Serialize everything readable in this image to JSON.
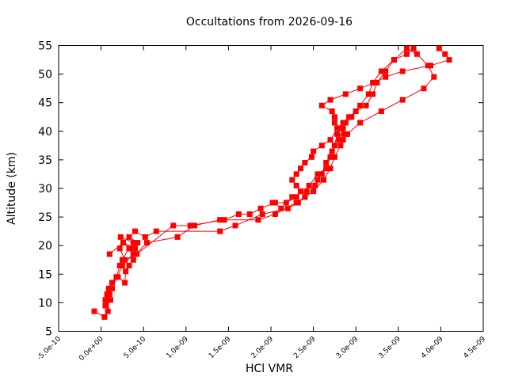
{
  "chart_data": {
    "type": "line",
    "title": "Occultations from 2026-09-16",
    "xlabel": "HCl VMR",
    "ylabel": "Altitude (km)",
    "xlim": [
      -5e-10,
      4.5e-09
    ],
    "ylim": [
      5,
      55
    ],
    "x_ticks": [
      {
        "value": -5e-10,
        "label": "-5.0e-10"
      },
      {
        "value": 0,
        "label": "0.0e+00"
      },
      {
        "value": 5e-10,
        "label": "5.0e-10"
      },
      {
        "value": 1e-09,
        "label": "1.0e-09"
      },
      {
        "value": 1.5e-09,
        "label": "1.5e-09"
      },
      {
        "value": 2e-09,
        "label": "2.0e-09"
      },
      {
        "value": 2.5e-09,
        "label": "2.5e-09"
      },
      {
        "value": 3e-09,
        "label": "3.0e-09"
      },
      {
        "value": 3.5e-09,
        "label": "3.5e-09"
      },
      {
        "value": 4e-09,
        "label": "4.0e-09"
      },
      {
        "value": 4.5e-09,
        "label": "4.5e-09"
      }
    ],
    "y_ticks": [
      {
        "value": 5,
        "label": "5"
      },
      {
        "value": 10,
        "label": "10"
      },
      {
        "value": 15,
        "label": "15"
      },
      {
        "value": 20,
        "label": "20"
      },
      {
        "value": 25,
        "label": "25"
      },
      {
        "value": 30,
        "label": "30"
      },
      {
        "value": 35,
        "label": "35"
      },
      {
        "value": 40,
        "label": "40"
      },
      {
        "value": 45,
        "label": "45"
      },
      {
        "value": 50,
        "label": "50"
      },
      {
        "value": 55,
        "label": "55"
      }
    ],
    "grid": false,
    "color": "#ff0000",
    "marker": "square",
    "series": [
      {
        "points": [
          [
            -8e-11,
            8.5
          ],
          [
            4e-11,
            7.5
          ],
          [
            8e-11,
            8.5
          ],
          [
            6e-11,
            9.5
          ],
          [
            5e-11,
            10.5
          ],
          [
            7e-11,
            11.5
          ],
          [
            9e-11,
            12.5
          ],
          [
            1.3e-10,
            13.5
          ],
          [
            2e-10,
            14.5
          ],
          [
            2.8e-10,
            13.5
          ],
          [
            2.9e-10,
            15.5
          ],
          [
            3.3e-10,
            16.5
          ],
          [
            3.8e-10,
            17.5
          ],
          [
            3.6e-10,
            19.5
          ],
          [
            4.3e-10,
            20.5
          ],
          [
            3.3e-10,
            21.5
          ],
          [
            4e-10,
            22.5
          ],
          [
            5.2e-10,
            21.5
          ],
          [
            6.5e-10,
            22.5
          ],
          [
            1.4e-09,
            22.5
          ],
          [
            1.58e-09,
            23.5
          ],
          [
            1.9e-09,
            25.5
          ],
          [
            2.2e-09,
            26.5
          ],
          [
            2.32e-09,
            27.5
          ],
          [
            2.4e-09,
            28.5
          ],
          [
            2.52e-09,
            30.5
          ],
          [
            2.55e-09,
            31.5
          ],
          [
            2.6e-09,
            32.5
          ],
          [
            2.65e-09,
            34.5
          ],
          [
            2.72e-09,
            36.5
          ],
          [
            2.8e-09,
            38.5
          ],
          [
            2.85e-09,
            40.5
          ],
          [
            2.88e-09,
            41.5
          ],
          [
            2.95e-09,
            42.5
          ],
          [
            3.05e-09,
            44.5
          ],
          [
            3.15e-09,
            46.5
          ],
          [
            3.2e-09,
            48.5
          ],
          [
            3.3e-09,
            50.5
          ],
          [
            3.45e-09,
            52.5
          ],
          [
            3.6e-09,
            54.5
          ],
          [
            3.72e-09,
            53.5
          ],
          [
            3.85e-09,
            51.5
          ],
          [
            3.92e-09,
            49.5
          ],
          [
            3.8e-09,
            47.5
          ],
          [
            3.55e-09,
            45.5
          ],
          [
            3.3e-09,
            43.5
          ],
          [
            3.05e-09,
            41.5
          ],
          [
            2.9e-09,
            39.5
          ],
          [
            2.85e-09,
            38.5
          ],
          [
            2.82e-09,
            37.5
          ],
          [
            2.75e-09,
            35.5
          ],
          [
            2.7e-09,
            33.5
          ],
          [
            2.62e-09,
            31.5
          ],
          [
            2.5e-09,
            29.5
          ],
          [
            2.4e-09,
            28.5
          ],
          [
            2.3e-09,
            27.5
          ],
          [
            2.05e-09,
            25.5
          ],
          [
            1.85e-09,
            24.5
          ],
          [
            1.4e-09,
            24.5
          ],
          [
            1.1e-09,
            23.5
          ],
          [
            9e-10,
            21.5
          ],
          [
            5.4e-10,
            20.5
          ],
          [
            4.1e-10,
            18.5
          ],
          [
            2.8e-10,
            17.5
          ],
          [
            2.2e-10,
            19.5
          ],
          [
            2.6e-10,
            20.5
          ],
          [
            1e-10,
            18.5
          ]
        ]
      },
      {
        "points": [
          [
            2.6e-10,
            20.5
          ],
          [
            4e-10,
            19.5
          ],
          [
            4.2e-10,
            18.5
          ],
          [
            8.5e-10,
            23.5
          ],
          [
            1.05e-09,
            23.5
          ],
          [
            1.45e-09,
            24.5
          ],
          [
            1.62e-09,
            25.5
          ],
          [
            1.75e-09,
            25.5
          ],
          [
            1.88e-09,
            26.5
          ],
          [
            2.05e-09,
            27.5
          ],
          [
            2.12e-09,
            26.5
          ],
          [
            2.25e-09,
            28.5
          ],
          [
            2.42e-09,
            29.5
          ],
          [
            2.45e-09,
            30.5
          ],
          [
            2.55e-09,
            32.5
          ],
          [
            2.65e-09,
            33.5
          ],
          [
            2.7e-09,
            35.5
          ],
          [
            2.75e-09,
            37.5
          ],
          [
            2.78e-09,
            39.5
          ],
          [
            2.86e-09,
            39.5
          ],
          [
            2.83e-09,
            40.5
          ],
          [
            2.75e-09,
            41.5
          ],
          [
            2.75e-09,
            42.5
          ],
          [
            2.72e-09,
            43.5
          ],
          [
            2.6e-09,
            44.5
          ],
          [
            2.7e-09,
            45.5
          ],
          [
            2.88e-09,
            46.5
          ],
          [
            3.05e-09,
            47.5
          ],
          [
            3.22e-09,
            48.5
          ],
          [
            3.35e-09,
            49.5
          ],
          [
            3.55e-09,
            50.5
          ],
          [
            3.88e-09,
            51.5
          ],
          [
            4.1e-09,
            52.5
          ],
          [
            4.05e-09,
            53.5
          ],
          [
            3.98e-09,
            54.5
          ]
        ]
      },
      {
        "points": [
          [
            3.68e-09,
            54.5
          ],
          [
            3.6e-09,
            53.5
          ],
          [
            3.45e-09,
            52.5
          ],
          [
            3.35e-09,
            50.5
          ],
          [
            3.25e-09,
            48.5
          ],
          [
            3.2e-09,
            46.5
          ],
          [
            3.12e-09,
            44.5
          ],
          [
            3e-09,
            43.5
          ],
          [
            2.92e-09,
            42.5
          ],
          [
            2.85e-09,
            41.5
          ],
          [
            2.78e-09,
            40.5
          ],
          [
            2.7e-09,
            38.5
          ],
          [
            2.6e-09,
            37.5
          ],
          [
            2.5e-09,
            36.5
          ],
          [
            2.48e-09,
            35.5
          ],
          [
            2.4e-09,
            34.5
          ],
          [
            2.35e-09,
            33.5
          ],
          [
            2.3e-09,
            32.5
          ],
          [
            2.25e-09,
            31.5
          ],
          [
            2.3e-09,
            30.5
          ],
          [
            2.35e-09,
            29.5
          ],
          [
            2.3e-09,
            28.5
          ],
          [
            2.18e-09,
            27.5
          ],
          [
            2.02e-09,
            27.5
          ]
        ]
      },
      {
        "points": [
          [
            1.8e-10,
            14.5
          ],
          [
            2.2e-10,
            16.5
          ],
          [
            2.5e-10,
            17.5
          ],
          [
            3.3e-10,
            19.5
          ],
          [
            3.8e-10,
            20.5
          ],
          [
            2.3e-10,
            21.5
          ],
          [
            3.8e-10,
            18.5
          ],
          [
            2.5e-10,
            16.5
          ],
          [
            1.9e-10,
            14.5
          ],
          [
            1.3e-10,
            12.5
          ],
          [
            1e-10,
            11.5
          ],
          [
            8e-11,
            10.5
          ],
          [
            5e-11,
            9.5
          ],
          [
            1.1e-10,
            10.5
          ]
        ]
      }
    ]
  }
}
